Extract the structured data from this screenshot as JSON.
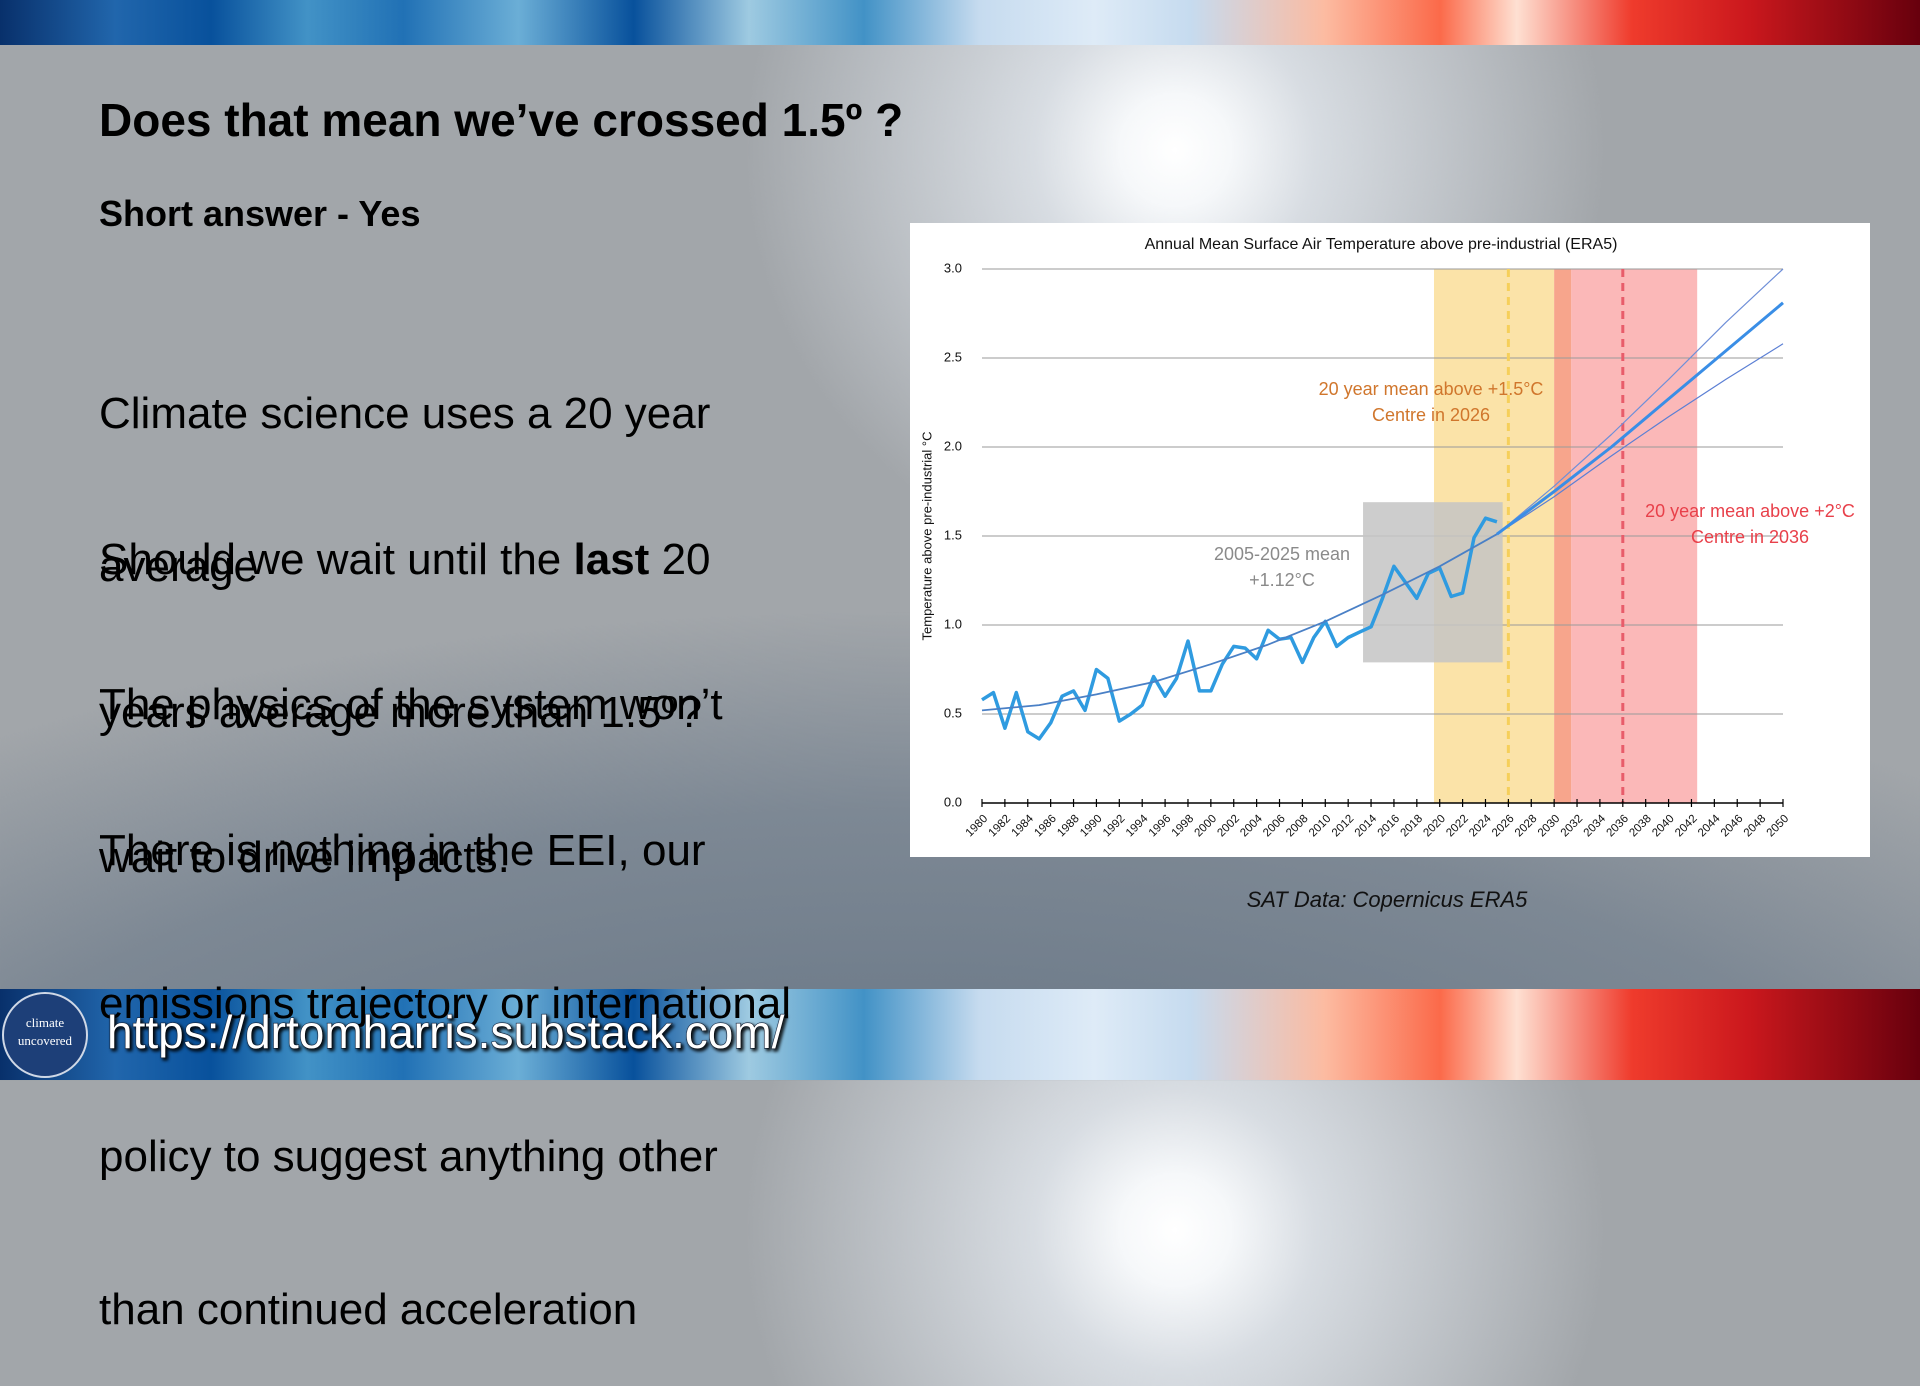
{
  "slide": {
    "title": "Does that mean we’ve crossed 1.5º ?",
    "subtitle": "Short answer - Yes",
    "paragraphs": [
      [
        "Climate science uses a 20 year",
        "average"
      ],
      [
        [
          "Should we wait until the ",
          "last",
          " 20"
        ],
        "years average more than 1.5º?"
      ],
      [
        "The physics of the system won’t",
        "wait to drive impacts."
      ],
      [
        "There is nothing in the EEI, our",
        "emissions trajectory or international",
        "policy to suggest anything other",
        "than continued acceleration"
      ]
    ],
    "caption": "SAT Data: Copernicus ERA5",
    "logo": [
      "climate",
      "uncovered"
    ],
    "url": "https://drtomharris.substack.com/"
  },
  "chart_data": {
    "type": "line",
    "title": "Annual Mean Surface Air Temperature above pre-industrial (ERA5)",
    "y_label": "Temperature above pre-industrial °C",
    "xlim": [
      1980,
      2050
    ],
    "xticks": [
      1980,
      1982,
      1984,
      1986,
      1988,
      1990,
      1992,
      1994,
      1996,
      1998,
      2000,
      2002,
      2004,
      2006,
      2008,
      2010,
      2012,
      2014,
      2016,
      2018,
      2020,
      2022,
      2024,
      2026,
      2028,
      2030,
      2032,
      2034,
      2036,
      2038,
      2040,
      2042,
      2044,
      2046,
      2048,
      2050
    ],
    "ylim": [
      0,
      3
    ],
    "yticks": [
      {
        "value": 0,
        "label": "0.0"
      },
      0.5,
      {
        "value": 1,
        "label": "1.0"
      },
      1.5,
      {
        "value": 2,
        "label": "2.0"
      },
      2.5,
      {
        "value": 3,
        "label": "3.0"
      }
    ],
    "grid": true,
    "shaded_regions": [
      {
        "x": [
          2019.5,
          2030
        ],
        "color": "#fbe3a8"
      },
      {
        "x": [
          2030,
          2031.5
        ],
        "color": "#f7a58c"
      },
      {
        "x": [
          2031.5,
          2042.5
        ],
        "color": "#fbb8b8"
      }
    ],
    "box_region": {
      "x": [
        2013.3,
        2025.5
      ],
      "y": [
        0.79,
        1.69
      ],
      "color": "#c4c4c4"
    },
    "vlines": [
      {
        "x": 2026,
        "color": "#f6cf5a"
      },
      {
        "x": 2036,
        "color": "#e85c6a"
      }
    ],
    "series": [
      {
        "color": "#2f9be0",
        "width": 3.5,
        "x": [
          1980,
          1981,
          1982,
          1983,
          1984,
          1985,
          1986,
          1987,
          1988,
          1989,
          1990,
          1991,
          1992,
          1993,
          1994,
          1995,
          1996,
          1997,
          1998,
          1999,
          2000,
          2001,
          2002,
          2003,
          2004,
          2005,
          2006,
          2007,
          2008,
          2009,
          2010,
          2011,
          2012,
          2013,
          2014,
          2015,
          2016,
          2017,
          2018,
          2019,
          2020,
          2021,
          2022,
          2023,
          2024,
          2025
        ],
        "values": [
          0.58,
          0.62,
          0.42,
          0.62,
          0.4,
          0.36,
          0.45,
          0.6,
          0.63,
          0.52,
          0.75,
          0.7,
          0.46,
          0.5,
          0.55,
          0.71,
          0.6,
          0.7,
          0.91,
          0.63,
          0.63,
          0.78,
          0.88,
          0.87,
          0.81,
          0.97,
          0.92,
          0.93,
          0.79,
          0.93,
          1.02,
          0.88,
          0.93,
          0.96,
          0.99,
          1.15,
          1.33,
          1.24,
          1.15,
          1.29,
          1.32,
          1.16,
          1.18,
          1.49,
          1.6,
          1.58
        ]
      },
      {
        "color": "#4a80c6",
        "width": 1.8,
        "x": [
          1980,
          1985,
          1990,
          1995,
          2000,
          2005,
          2010,
          2015,
          2020,
          2025
        ],
        "values": [
          0.52,
          0.55,
          0.61,
          0.68,
          0.78,
          0.89,
          1.02,
          1.17,
          1.33,
          1.51
        ]
      },
      {
        "color": "#6f8fd8",
        "width": 1.2,
        "x": [
          2025,
          2030,
          2035,
          2040,
          2045,
          2050
        ],
        "values": [
          1.51,
          1.78,
          2.07,
          2.38,
          2.7,
          3.0
        ]
      },
      {
        "color": "#5b7fd4",
        "width": 1.2,
        "x": [
          2025,
          2030,
          2035,
          2040,
          2045,
          2050
        ],
        "values": [
          1.51,
          1.72,
          1.95,
          2.17,
          2.38,
          2.58
        ]
      },
      {
        "color": "#3a8ee6",
        "width": 3,
        "x": [
          2025,
          2030,
          2035,
          2040,
          2045,
          2050
        ],
        "values": [
          1.51,
          1.75,
          2.0,
          2.27,
          2.54,
          2.81
        ]
      }
    ],
    "annotations": [
      {
        "lines": [
          "2005-2025 mean",
          "+1.12°C"
        ],
        "color": "#8a8a8a"
      },
      {
        "lines": [
          "20 year mean above +1.5°C",
          "Centre in 2026"
        ],
        "color": "#d0762c"
      },
      {
        "lines": [
          "20 year mean above +2°C",
          "Centre in 2036"
        ],
        "color": "#e8404a"
      }
    ]
  }
}
